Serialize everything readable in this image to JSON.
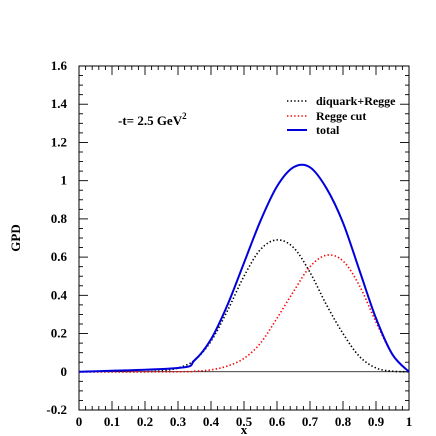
{
  "chart_data": {
    "type": "line",
    "xlabel": "x",
    "ylabel": "GPD",
    "xlim": [
      0,
      1
    ],
    "ylim": [
      -0.2,
      1.6
    ],
    "x_ticks": [
      "0",
      "0.1",
      "0.2",
      "0.3",
      "0.4",
      "0.5",
      "0.6",
      "0.7",
      "0.8",
      "0.9",
      "1"
    ],
    "y_ticks": [
      "-0.2",
      "0",
      "0.2",
      "0.4",
      "0.6",
      "0.8",
      "1",
      "1.2",
      "1.4",
      "1.6"
    ],
    "annotation": "-t= 2.5 GeV",
    "annotation_sup": "2",
    "legend_position": "top-right",
    "series": [
      {
        "name": "diquark+Regge",
        "color": "#000000",
        "style": "dotted",
        "x": [
          0,
          0.1,
          0.2,
          0.25,
          0.3,
          0.35,
          0.4,
          0.45,
          0.5,
          0.55,
          0.6,
          0.65,
          0.7,
          0.75,
          0.8,
          0.85,
          0.9,
          0.95,
          1.0
        ],
        "y": [
          0,
          0,
          0,
          0.005,
          0.02,
          0.06,
          0.16,
          0.32,
          0.5,
          0.64,
          0.69,
          0.65,
          0.52,
          0.35,
          0.2,
          0.08,
          0.02,
          0.003,
          0
        ]
      },
      {
        "name": "Regge cut",
        "color": "#ff0000",
        "style": "dotted",
        "x": [
          0,
          0.3,
          0.35,
          0.4,
          0.45,
          0.5,
          0.55,
          0.6,
          0.65,
          0.7,
          0.75,
          0.8,
          0.85,
          0.9,
          0.95,
          1.0
        ],
        "y": [
          0,
          0,
          0.003,
          0.01,
          0.03,
          0.07,
          0.15,
          0.28,
          0.42,
          0.55,
          0.61,
          0.58,
          0.45,
          0.26,
          0.09,
          0
        ]
      },
      {
        "name": "total",
        "color": "#0000dd",
        "style": "solid",
        "x": [
          0,
          0.3,
          0.35,
          0.4,
          0.45,
          0.5,
          0.55,
          0.6,
          0.65,
          0.7,
          0.75,
          0.8,
          0.85,
          0.9,
          0.95,
          1.0
        ],
        "y": [
          0,
          0.02,
          0.06,
          0.17,
          0.35,
          0.57,
          0.79,
          0.97,
          1.07,
          1.07,
          0.96,
          0.78,
          0.53,
          0.28,
          0.09,
          0
        ]
      }
    ]
  }
}
